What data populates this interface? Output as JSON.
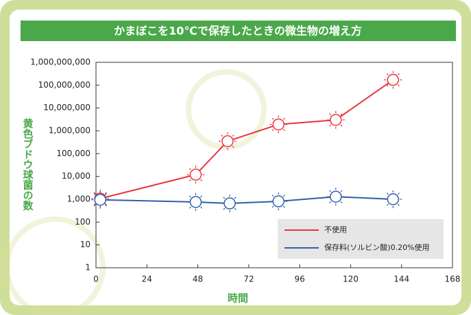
{
  "chart_data": {
    "type": "line",
    "title": "かまぼこを10℃で保存したときの微生物の増え方",
    "x_label": "時間",
    "y_label": "黄色ブドウ球菌の数",
    "log_y": true,
    "xlim": [
      0,
      168
    ],
    "xticks": [
      0,
      24,
      48,
      72,
      96,
      120,
      144,
      168
    ],
    "ylim": [
      1,
      1000000000
    ],
    "yticks": [
      1,
      10,
      100,
      {
        "value": 1000,
        "label": "1,000"
      },
      {
        "value": 10000,
        "label": "10,000"
      },
      {
        "value": 100000,
        "label": "100,000"
      },
      {
        "value": 1000000,
        "label": "1,000,000"
      },
      {
        "value": 10000000,
        "label": "10,000,000"
      },
      {
        "value": 100000000,
        "label": "100,000,000"
      },
      {
        "value": 1000000000,
        "label": "1,000,000,000"
      }
    ],
    "legend_position": "lower right",
    "series": [
      {
        "name": "不使用",
        "color": "#e8343c",
        "x": [
          2,
          47,
          62,
          86,
          113,
          140
        ],
        "values": [
          1070,
          12000,
          350000,
          1900000,
          3000000,
          170000000
        ]
      },
      {
        "name": "保存料(ソルビン酸)0.20%使用",
        "color": "#2d5fa8",
        "x": [
          2,
          47,
          63,
          86,
          113,
          140
        ],
        "values": [
          950,
          760,
          660,
          810,
          1300,
          1000
        ]
      }
    ]
  }
}
